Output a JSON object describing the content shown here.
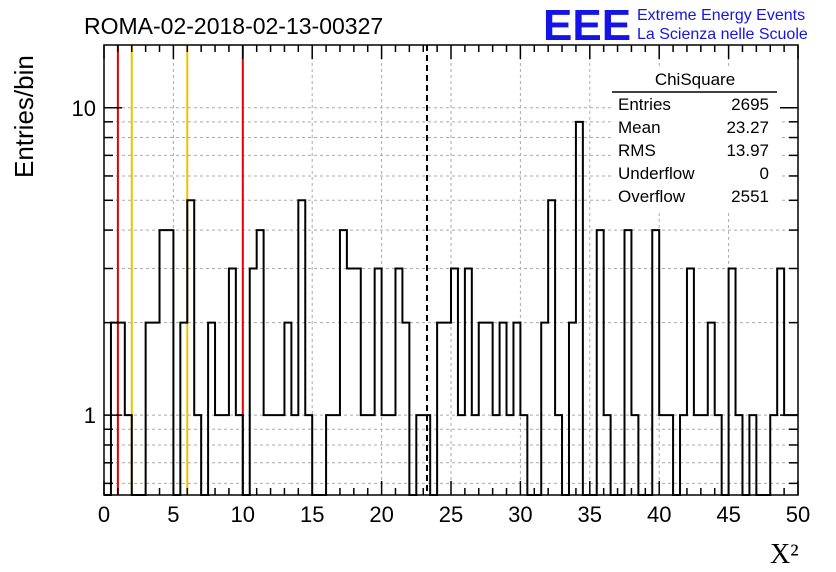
{
  "header": {
    "title": "ROMA-02-2018-02-13-00327",
    "logo_text": "EEE",
    "logo_line1": "Extreme Energy Events",
    "logo_line2": "La Scienza nelle Scuole"
  },
  "stats": {
    "name": "ChiSquare",
    "rows": [
      {
        "label": "Entries",
        "value": "2695"
      },
      {
        "label": "Mean",
        "value": "23.27"
      },
      {
        "label": "RMS",
        "value": "13.97"
      },
      {
        "label": "Underflow",
        "value": "0"
      },
      {
        "label": "Overflow",
        "value": "2551"
      }
    ]
  },
  "colors": {
    "histogram": "#000000",
    "red_line": "#e00000",
    "yellow_line": "#f0c000",
    "grid": "#aaaaaa",
    "logo": "#1414e6"
  },
  "chart_data": {
    "type": "bar",
    "histogram_style": "step",
    "xlabel": "X²",
    "ylabel": "Entries/bin",
    "xlim": [
      0,
      50
    ],
    "ylim_log": [
      0.55,
      16
    ],
    "log_y": true,
    "grid": true,
    "x_ticks": [
      0,
      5,
      10,
      15,
      20,
      25,
      30,
      35,
      40,
      45,
      50
    ],
    "x_tick_labels": [
      "0",
      "5",
      "10",
      "15",
      "20",
      "25",
      "30",
      "35",
      "40",
      "45",
      "50"
    ],
    "y_ticks": [
      1,
      10
    ],
    "y_tick_labels": [
      "1",
      "10"
    ],
    "bin_width": 0.5,
    "bin_starts": [
      0.5,
      1.0,
      1.5,
      2.0,
      2.5,
      3.0,
      3.5,
      4.0,
      4.5,
      5.0,
      5.5,
      6.0,
      6.5,
      7.0,
      7.5,
      8.0,
      8.5,
      9.0,
      9.5,
      10.0,
      10.5,
      11.0,
      11.5,
      12.0,
      12.5,
      13.0,
      13.5,
      14.0,
      14.5,
      15.0,
      15.5,
      16.0,
      16.5,
      17.0,
      17.5,
      18.0,
      18.5,
      19.0,
      19.5,
      20.0,
      20.5,
      21.0,
      21.5,
      22.0,
      22.5,
      23.0,
      23.5,
      24.0,
      24.5,
      25.0,
      25.5,
      26.0,
      26.5,
      27.0,
      27.5,
      28.0,
      28.5,
      29.0,
      29.5,
      30.0,
      30.5,
      31.0,
      31.5,
      32.0,
      32.5,
      33.0,
      33.5,
      34.0,
      34.5,
      35.0,
      35.5,
      36.0,
      36.5,
      37.0,
      37.5,
      38.0,
      38.5,
      39.0,
      39.5,
      40.0,
      40.5,
      41.0,
      41.5,
      42.0,
      42.5,
      43.0,
      43.5,
      44.0,
      44.5,
      45.0,
      45.5,
      46.0,
      46.5,
      47.0,
      47.5,
      48.0,
      48.5,
      49.0,
      49.5
    ],
    "counts": [
      2,
      2,
      1,
      0,
      0,
      2,
      2,
      4,
      4,
      0,
      2,
      5,
      1,
      0,
      2,
      1,
      1,
      3,
      1,
      0,
      3,
      4,
      1,
      1,
      1,
      2,
      1,
      5,
      1,
      0,
      0,
      1,
      1,
      4,
      3,
      3,
      1,
      1,
      3,
      1,
      1,
      3,
      2,
      0,
      1,
      1,
      0,
      2,
      2,
      3,
      1,
      3,
      1,
      2,
      2,
      1,
      2,
      1,
      2,
      1,
      0,
      0,
      2,
      5,
      1,
      0,
      2,
      9,
      0,
      0,
      4,
      1,
      0,
      0,
      4,
      1,
      0,
      0,
      4,
      1,
      1,
      0,
      1,
      3,
      1,
      1,
      2,
      1,
      0,
      3,
      1,
      0,
      1,
      0,
      0,
      1,
      3,
      1,
      1
    ],
    "vertical_lines": [
      {
        "x": 1.0,
        "color": "#e00000",
        "style": "solid"
      },
      {
        "x": 2.0,
        "color": "#f0c000",
        "style": "solid"
      },
      {
        "x": 6.0,
        "color": "#f0c000",
        "style": "solid"
      },
      {
        "x": 10.0,
        "color": "#e00000",
        "style": "solid"
      },
      {
        "x": 23.27,
        "color": "#000000",
        "style": "dashed"
      }
    ]
  }
}
